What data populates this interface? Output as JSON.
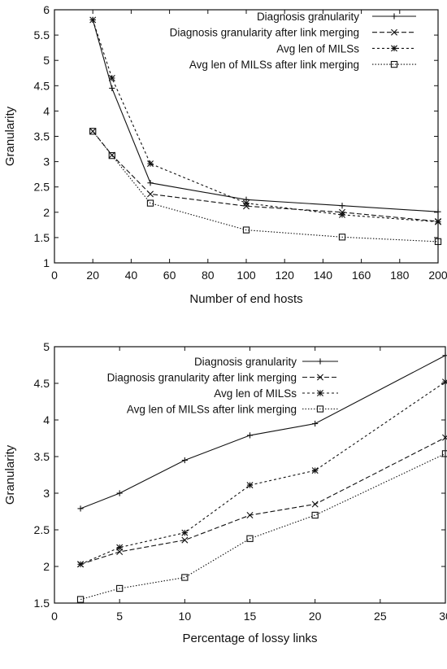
{
  "chart_data": [
    {
      "type": "line",
      "xlabel": "Number of end hosts",
      "ylabel": "Granularity",
      "xlim": [
        0,
        200
      ],
      "ylim": [
        1,
        6
      ],
      "xticks": [
        0,
        20,
        40,
        60,
        80,
        100,
        120,
        140,
        160,
        180,
        200
      ],
      "yticks": [
        1,
        1.5,
        2,
        2.5,
        3,
        3.5,
        4,
        4.5,
        5,
        5.5,
        6
      ],
      "legend_position": "top-right",
      "x": [
        20,
        30,
        50,
        100,
        150,
        200
      ],
      "series": [
        {
          "name": "Diagnosis granularity",
          "style": "solid",
          "marker": "plus",
          "values": [
            5.8,
            4.45,
            2.58,
            2.25,
            2.13,
            2.01
          ]
        },
        {
          "name": "Diagnosis granularity after link merging",
          "style": "dashed",
          "marker": "x",
          "values": [
            3.6,
            3.13,
            2.36,
            2.12,
            2.0,
            1.82
          ]
        },
        {
          "name": "Avg len of MILSs",
          "style": "dotted",
          "marker": "star",
          "values": [
            5.8,
            4.65,
            2.96,
            2.18,
            1.95,
            1.81
          ]
        },
        {
          "name": "Avg len of MILSs after link merging",
          "style": "dotted-fine",
          "marker": "square",
          "values": [
            3.6,
            3.12,
            2.18,
            1.65,
            1.51,
            1.42
          ]
        }
      ]
    },
    {
      "type": "line",
      "xlabel": "Percentage of lossy links",
      "ylabel": "Granularity",
      "xlim": [
        0,
        30
      ],
      "ylim": [
        1.5,
        5
      ],
      "xticks": [
        0,
        5,
        10,
        15,
        20,
        25,
        30
      ],
      "yticks": [
        1.5,
        2,
        2.5,
        3,
        3.5,
        4,
        4.5,
        5
      ],
      "legend_position": "top-right",
      "x": [
        2,
        5,
        10,
        15,
        20,
        30
      ],
      "series": [
        {
          "name": "Diagnosis granularity",
          "style": "solid",
          "marker": "plus",
          "values": [
            2.79,
            3.0,
            3.45,
            3.79,
            3.95,
            4.88
          ]
        },
        {
          "name": "Diagnosis granularity after link merging",
          "style": "dashed",
          "marker": "x",
          "values": [
            2.03,
            2.2,
            2.36,
            2.7,
            2.85,
            3.76
          ]
        },
        {
          "name": "Avg len of MILSs",
          "style": "dotted",
          "marker": "star",
          "values": [
            2.03,
            2.26,
            2.46,
            3.11,
            3.31,
            4.52
          ]
        },
        {
          "name": "Avg len of MILSs after link merging",
          "style": "dotted-fine",
          "marker": "square",
          "values": [
            1.55,
            1.7,
            1.85,
            2.38,
            2.7,
            3.54
          ]
        }
      ]
    }
  ]
}
